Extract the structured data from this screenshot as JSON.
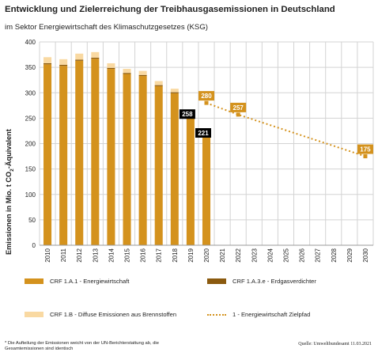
{
  "page": {
    "title": "Entwicklung und Zielerreichung der Treibhausgasemissionen in Deutschland",
    "subtitle": "im Sektor Energiewirtschaft des Klimaschutzgesetzes (KSG)",
    "footnote": "* Die Aufteilung der Emissionen weicht von der UN-Berichterstattung ab, die Gesamtemissionen sind identisch",
    "source": "Quelle: Umweltbundesamt  11.03.2021"
  },
  "colors": {
    "energiewirtschaft": "#D4921D",
    "erdgasverdichter": "#8B5A0F",
    "diffuse": "#F9D9A2",
    "zielpfad": "#D4921D",
    "grid": "#D3D3D3",
    "label_black": "#000000"
  },
  "chart_data": {
    "type": "bar",
    "ylabel_main": "Emissionen in Mio. t CO",
    "ylabel_sub": "2",
    "ylabel_tail": "-Äquivalent",
    "ylim": [
      0,
      400
    ],
    "yticks": [
      0,
      50,
      100,
      150,
      200,
      250,
      300,
      350,
      400
    ],
    "grid": true,
    "categories": [
      "2010",
      "2011",
      "2012",
      "2013",
      "2014",
      "2015",
      "2016",
      "2017",
      "2018",
      "2019",
      "2020",
      "2021",
      "2022",
      "2023",
      "2024",
      "2025",
      "2026",
      "2027",
      "2028",
      "2029",
      "2030"
    ],
    "series": [
      {
        "name": "CRF 1.A.1 - Energiewirtschaft",
        "key": "energiewirtschaft",
        "values": [
          356,
          353,
          363,
          367,
          347,
          337,
          333,
          313,
          299,
          250,
          212,
          null,
          null,
          null,
          null,
          null,
          null,
          null,
          null,
          null,
          null
        ]
      },
      {
        "name": "CRF 1.A.3.e - Erdgasverdichter",
        "key": "erdgasverdichter",
        "values": [
          2,
          2,
          2,
          2,
          2,
          2,
          2,
          2,
          2,
          2,
          2,
          null,
          null,
          null,
          null,
          null,
          null,
          null,
          null,
          null,
          null
        ]
      },
      {
        "name": "CRF 1.B - Diffuse Emissionen aus Brennstoffen",
        "key": "diffuse",
        "values": [
          12,
          11,
          12,
          11,
          9,
          8,
          8,
          8,
          7,
          6,
          7,
          null,
          null,
          null,
          null,
          null,
          null,
          null,
          null,
          null,
          null
        ]
      }
    ],
    "target_path": {
      "name": "1 - Energiewirtschaft Zielpfad",
      "points": [
        [
          "2020",
          280
        ],
        [
          "2022",
          257
        ],
        [
          "2030",
          175
        ]
      ]
    },
    "annotations": [
      {
        "x": "2020",
        "value": 280,
        "text": "280",
        "style": "orange"
      },
      {
        "x": "2022",
        "value": 257,
        "text": "257",
        "style": "orange"
      },
      {
        "x": "2030",
        "value": 175,
        "text": "175",
        "style": "orange"
      },
      {
        "x": "2019",
        "value": 258,
        "text": "258",
        "style": "black"
      },
      {
        "x": "2020",
        "value": 221,
        "text": "221",
        "style": "black"
      }
    ]
  }
}
